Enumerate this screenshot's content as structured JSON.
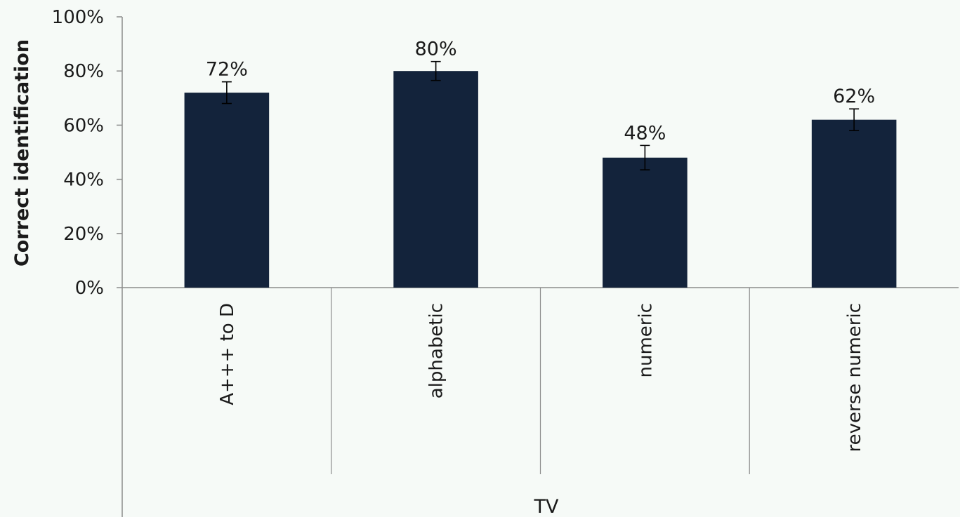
{
  "chart_data": {
    "type": "bar",
    "title": "",
    "group_label": "TV",
    "categories": [
      "A+++ to D",
      "alphabetic",
      "numeric",
      "reverse numeric"
    ],
    "values": [
      72,
      80,
      48,
      62
    ],
    "error": [
      4,
      3.5,
      4.5,
      4
    ],
    "data_labels": [
      "72%",
      "80%",
      "48%",
      "62%"
    ],
    "ylabel": "Correct identification",
    "xlabel": "TV",
    "ylim": [
      0,
      100
    ],
    "yticks": [
      0,
      20,
      40,
      60,
      80,
      100
    ],
    "ytick_labels": [
      "0%",
      "20%",
      "40%",
      "60%",
      "80%",
      "100%"
    ],
    "grid": false,
    "legend": "none",
    "bar_color": "#13233b",
    "background_color": "#f6faf7",
    "axis_color": "#8c8c8c"
  }
}
